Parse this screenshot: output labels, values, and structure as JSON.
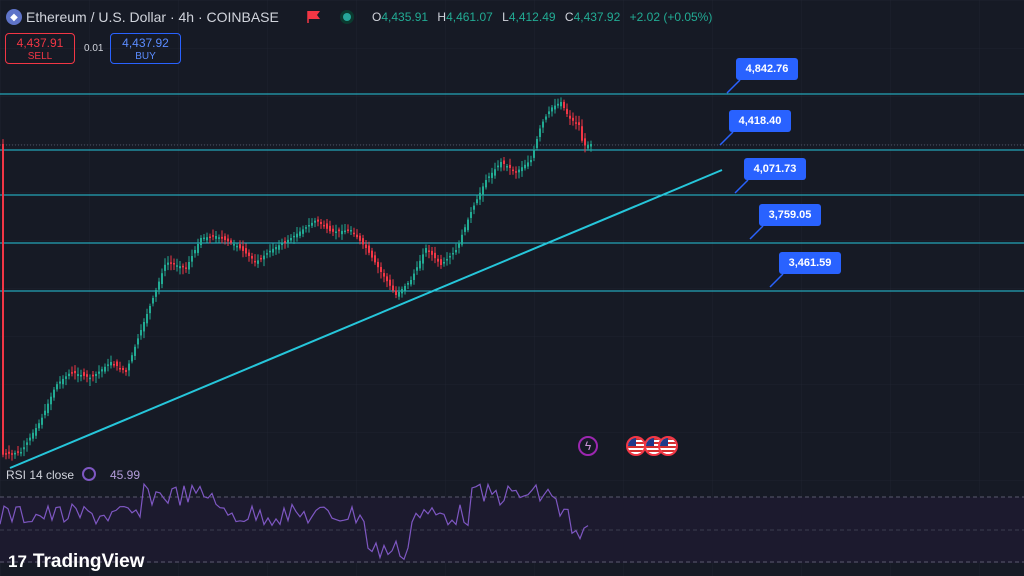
{
  "header": {
    "symbol_title": "Ethereum / U.S. Dollar · 4h · COINBASE",
    "ohlc": {
      "open_key": "O",
      "open": "4,435.91",
      "high_key": "H",
      "high": "4,461.07",
      "low_key": "L",
      "low": "4,412.49",
      "close_key": "C",
      "close": "4,437.92",
      "change": "+2.02 (+0.05%)"
    }
  },
  "trade": {
    "sell_price": "4,437.91",
    "sell_label": "SELL",
    "spread": "0.01",
    "buy_price": "4,437.92",
    "buy_label": "BUY"
  },
  "levels": [
    {
      "value": "4,842.76"
    },
    {
      "value": "4,418.40"
    },
    {
      "value": "4,071.73"
    },
    {
      "value": "3,759.05"
    },
    {
      "value": "3,461.59"
    }
  ],
  "rsi": {
    "label": "RSI 14 close",
    "value": "45.99"
  },
  "branding": {
    "mark": "17",
    "name": "TradingView"
  },
  "icons": {
    "symbol": "ethereum-icon",
    "flag": "flag-icon",
    "status": "market-status-icon",
    "rsi": "rsi-settings-icon",
    "flash": "flash-event-icon",
    "event": "us-flag-event-icon"
  },
  "colors": {
    "background": "#161a25",
    "up": "#22ab94",
    "down": "#f23645",
    "level_line": "#26c6da",
    "label": "#2962ff",
    "rsi": "#7e57c2"
  }
}
